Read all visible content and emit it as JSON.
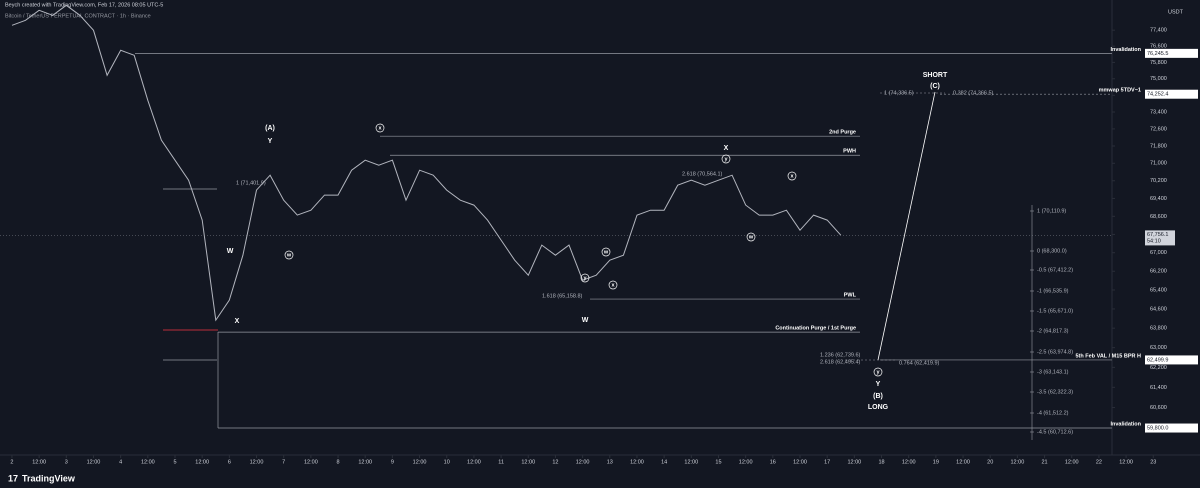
{
  "header": {
    "author_line": "Beych created with TradingView.com, Feb 17, 2026 08:05 UTC-5",
    "symbol_line": "Bitcoin / TetherUS PERPETUAL CONTRACT · 1h · Binance"
  },
  "footer": {
    "brand": "TradingView"
  },
  "chart_data": {
    "type": "line",
    "log_scale": true,
    "grid": false,
    "color": "#b2b5be",
    "x": [
      0,
      0.5,
      1,
      1.5,
      2,
      2.5,
      3,
      3.5,
      4,
      4.5,
      5,
      5.5,
      6,
      6.5,
      7,
      7.5,
      8,
      8.5,
      9,
      9.5,
      10,
      10.5,
      11,
      11.5,
      12,
      12.5,
      13,
      13.5,
      14,
      14.5,
      15,
      15.5,
      16,
      16.5,
      17,
      17.5,
      18,
      18.5,
      19,
      19.5,
      20,
      20.5,
      21,
      21.5,
      22,
      22.5,
      23,
      23.5,
      24,
      24.5,
      25,
      25.5,
      26,
      26.5,
      27,
      27.5,
      28,
      28.5,
      29,
      29.5,
      30,
      30.5
    ],
    "values": [
      77645,
      77897,
      78404,
      78150,
      78659,
      78150,
      77395,
      75170,
      76395,
      76149,
      73961,
      72070,
      71144,
      70225,
      68430,
      64135,
      64973,
      66892,
      69775,
      70453,
      69322,
      68652,
      68873,
      69548,
      69548,
      70684,
      71144,
      70914,
      71144,
      69322,
      70684,
      70453,
      69775,
      69322,
      69099,
      68430,
      67550,
      66677,
      66031,
      67331,
      66892,
      67331,
      65818,
      66031,
      66677,
      66892,
      68652,
      68873,
      68873,
      69996,
      70225,
      69996,
      70225,
      70453,
      69099,
      68652,
      68652,
      68873,
      67987,
      68652,
      68430,
      67765
    ],
    "xlim": [
      -0.44,
      43.72
    ],
    "xticks": [
      {
        "value": 0,
        "label": "2"
      },
      {
        "value": 1,
        "label": "12:00"
      },
      {
        "value": 2,
        "label": "3"
      },
      {
        "value": 3,
        "label": "12:00"
      },
      {
        "value": 4,
        "label": "4"
      },
      {
        "value": 5,
        "label": "12:00"
      },
      {
        "value": 6,
        "label": "5"
      },
      {
        "value": 7,
        "label": "12:00"
      },
      {
        "value": 8,
        "label": "6"
      },
      {
        "value": 9,
        "label": "12:00"
      },
      {
        "value": 10,
        "label": "7"
      },
      {
        "value": 11,
        "label": "12:00"
      },
      {
        "value": 12,
        "label": "8"
      },
      {
        "value": 13,
        "label": "12:00"
      },
      {
        "value": 14,
        "label": "9"
      },
      {
        "value": 15,
        "label": "12:00"
      },
      {
        "value": 16,
        "label": "10"
      },
      {
        "value": 17,
        "label": "12:00"
      },
      {
        "value": 18,
        "label": "11"
      },
      {
        "value": 19,
        "label": "12:00"
      },
      {
        "value": 20,
        "label": "12"
      },
      {
        "value": 21,
        "label": "12:00"
      },
      {
        "value": 22,
        "label": "13"
      },
      {
        "value": 23,
        "label": "12:00"
      },
      {
        "value": 24,
        "label": "14"
      },
      {
        "value": 25,
        "label": "12:00"
      },
      {
        "value": 26,
        "label": "15"
      },
      {
        "value": 27,
        "label": "12:00"
      },
      {
        "value": 28,
        "label": "16"
      },
      {
        "value": 29,
        "label": "12:00"
      },
      {
        "value": 30,
        "label": "17"
      },
      {
        "value": 31,
        "label": "12:00"
      },
      {
        "value": 32,
        "label": "18"
      },
      {
        "value": 33,
        "label": "12:00"
      },
      {
        "value": 34,
        "label": "19"
      },
      {
        "value": 35,
        "label": "12:00"
      },
      {
        "value": 36,
        "label": "20"
      },
      {
        "value": 37,
        "label": "12:00"
      },
      {
        "value": 38,
        "label": "21"
      },
      {
        "value": 39,
        "label": "12:00"
      },
      {
        "value": 40,
        "label": "22"
      },
      {
        "value": 41,
        "label": "12:00"
      },
      {
        "value": 42,
        "label": "23"
      }
    ],
    "ylim": [
      58270,
      78930
    ],
    "yticks": [
      {
        "value": 60600,
        "label": "60,600"
      },
      {
        "value": 61400,
        "label": "61,400"
      },
      {
        "value": 62200,
        "label": "62,200"
      },
      {
        "value": 63000,
        "label": "63,000"
      },
      {
        "value": 63800,
        "label": "63,800"
      },
      {
        "value": 64600,
        "label": "64,600"
      },
      {
        "value": 65400,
        "label": "65,400"
      },
      {
        "value": 66200,
        "label": "66,200"
      },
      {
        "value": 67000,
        "label": "67,000"
      },
      {
        "value": 67800,
        "label": "67,800"
      },
      {
        "value": 68600,
        "label": "68,600"
      },
      {
        "value": 69400,
        "label": "69,400"
      },
      {
        "value": 70200,
        "label": "70,200"
      },
      {
        "value": 71000,
        "label": "71,000"
      },
      {
        "value": 71800,
        "label": "71,800"
      },
      {
        "value": 72600,
        "label": "72,600"
      },
      {
        "value": 73400,
        "label": "73,400"
      },
      {
        "value": 74200,
        "label": "74,200"
      },
      {
        "value": 75000,
        "label": "75,000"
      },
      {
        "value": 75800,
        "label": "75,800"
      },
      {
        "value": 76600,
        "label": "76,600"
      },
      {
        "value": 77400,
        "label": "77,400"
      }
    ],
    "currency": "USDT",
    "last_price": {
      "value": 67756.1,
      "value_label": "67,756.1"
    },
    "countdown": "54:10",
    "levels": [
      {
        "label": "Invalidation",
        "value": 76245.5,
        "value_label": "76,245.5"
      },
      {
        "label": "mmwap 5TDV~1",
        "value": 74252.4,
        "value_label": "74,252.4"
      },
      {
        "label": "2nd Purge",
        "value": 72258
      },
      {
        "label": "PWH",
        "value": 71372
      },
      {
        "label": "PWL",
        "value": 65016
      },
      {
        "label": "Continuation Purge / 1st Purge",
        "value": 63638
      },
      {
        "label": "5th Feb VAL / M15 BPR H",
        "value": 62499.9,
        "value_label": "62,499.9"
      },
      {
        "label": "Invalidation",
        "value": 59800,
        "value_label": "59,800.0"
      }
    ],
    "fib_scale": [
      "1 (70,110.9)",
      "0 (68,300.0)",
      "-0.5 (67,412.2)",
      "-1 (66,535.9)",
      "-1.5 (65,671.0)",
      "-2 (64,817.3)",
      "-2.5 (63,974.8)",
      "-3 (63,143.1)",
      "-3.5 (62,322.3)",
      "-4 (61,512.2)",
      "-4.5 (60,712.6)"
    ],
    "annotations": [
      "1 (71,401.9)",
      "1.618 (65,158.8)",
      "2.618 (70,564.1)",
      "1 (74,336.5)",
      "0.382 (74,366.5)",
      "1.236 (62,739.6)",
      "2.618 (62,495.4)",
      "0.764 (62,419.9)"
    ],
    "wave_labels": [
      "(A)",
      "Y",
      "W",
      "X",
      "W",
      "X",
      "SHORT",
      "(C)",
      "Y",
      "(B)",
      "LONG"
    ],
    "circled_labels": [
      "x",
      "w",
      "y",
      "w",
      "x",
      "y",
      "x",
      "w",
      "y"
    ]
  }
}
